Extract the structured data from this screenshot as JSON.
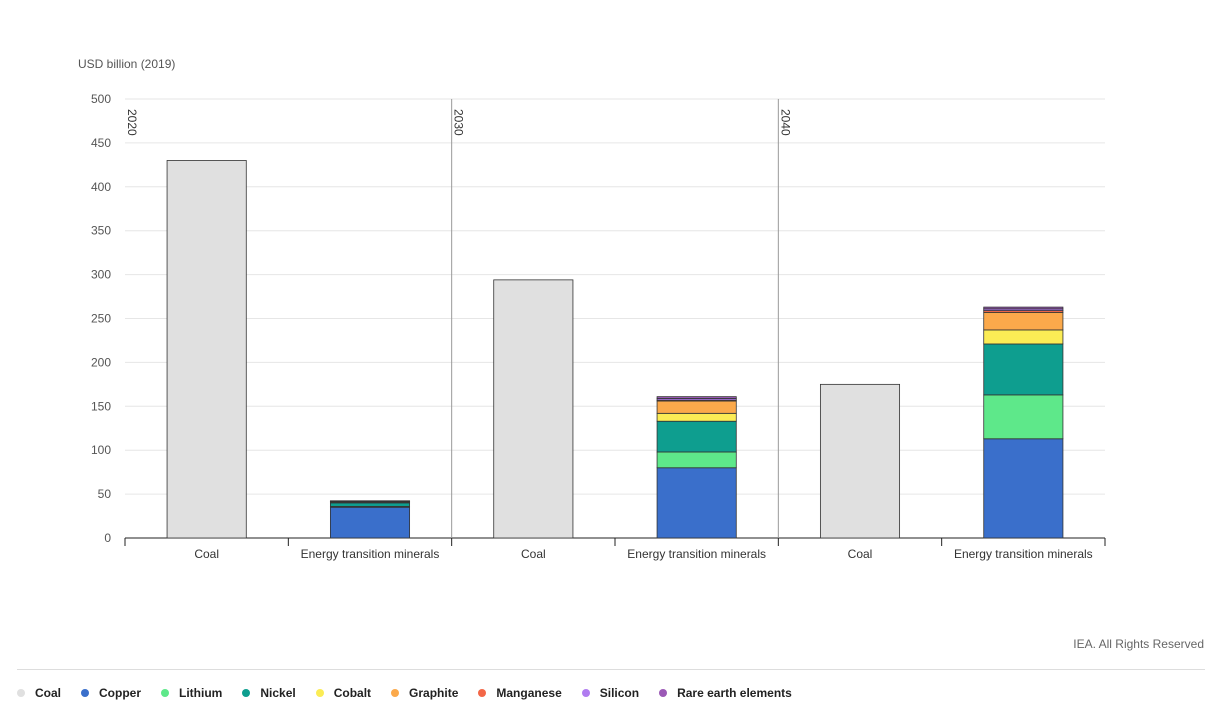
{
  "chart_data": {
    "type": "bar",
    "stacked": true,
    "ylabel": "USD billion (2019)",
    "ylim": [
      0,
      500
    ],
    "yticks": [
      0,
      50,
      100,
      150,
      200,
      250,
      300,
      350,
      400,
      450,
      500
    ],
    "grid": true,
    "legend_position": "bottom",
    "credit": "IEA. All Rights Reserved",
    "groups": [
      "2020",
      "2030",
      "2040"
    ],
    "categories": [
      "Coal",
      "Energy transition minerals"
    ],
    "series": [
      {
        "name": "Coal",
        "color": "#e0e0e0",
        "values": [
          [
            430,
            0
          ],
          [
            294,
            0
          ],
          [
            175,
            0
          ]
        ]
      },
      {
        "name": "Copper",
        "color": "#3a6fcb",
        "values": [
          [
            0,
            35
          ],
          [
            0,
            80
          ],
          [
            0,
            113
          ]
        ]
      },
      {
        "name": "Lithium",
        "color": "#5ee88a",
        "values": [
          [
            0,
            1
          ],
          [
            0,
            18
          ],
          [
            0,
            50
          ]
        ]
      },
      {
        "name": "Nickel",
        "color": "#0e9e8f",
        "values": [
          [
            0,
            4
          ],
          [
            0,
            35
          ],
          [
            0,
            58
          ]
        ]
      },
      {
        "name": "Cobalt",
        "color": "#fbec55",
        "values": [
          [
            0,
            1
          ],
          [
            0,
            9
          ],
          [
            0,
            16
          ]
        ]
      },
      {
        "name": "Graphite",
        "color": "#fba94b",
        "values": [
          [
            0,
            0.5
          ],
          [
            0,
            14
          ],
          [
            0,
            20
          ]
        ]
      },
      {
        "name": "Manganese",
        "color": "#f36747",
        "values": [
          [
            0,
            0.3
          ],
          [
            0,
            1
          ],
          [
            0,
            2
          ]
        ]
      },
      {
        "name": "Silicon",
        "color": "#b07cf0",
        "values": [
          [
            0,
            0.3
          ],
          [
            0,
            2
          ],
          [
            0,
            2
          ]
        ]
      },
      {
        "name": "Rare earth elements",
        "color": "#9b59b6",
        "values": [
          [
            0,
            0.3
          ],
          [
            0,
            2
          ],
          [
            0,
            2
          ]
        ]
      }
    ]
  }
}
